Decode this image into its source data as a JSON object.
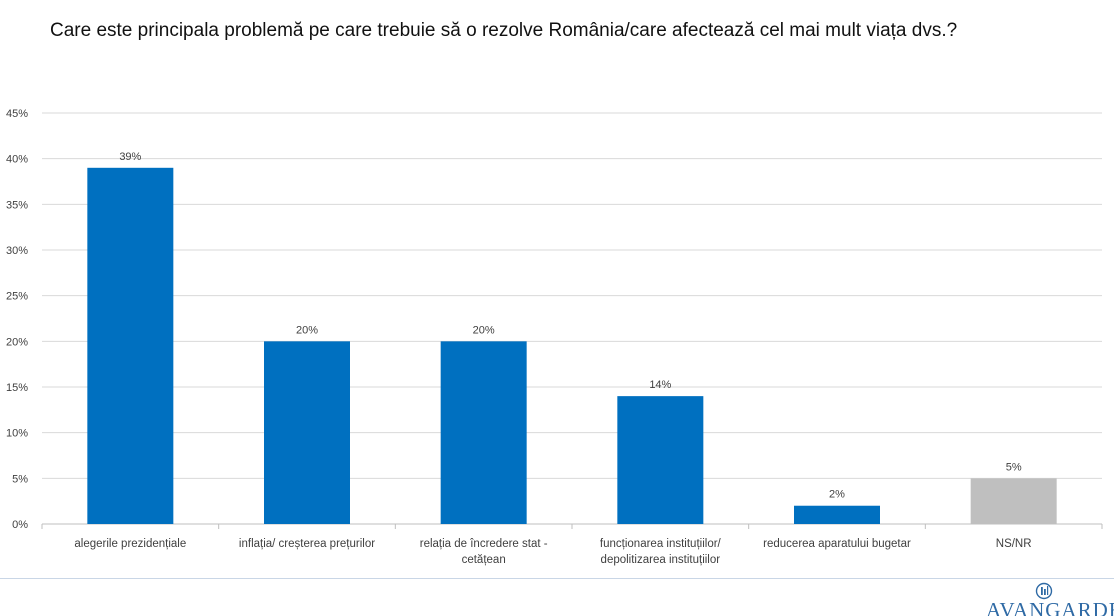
{
  "title": "Care este principala problemă pe care trebuie să o rezolve România/care afectează cel mai mult viața dvs.?",
  "chart_data": {
    "type": "bar",
    "title": "Care este principala problemă pe care trebuie să o rezolve România/care afectează cel mai mult viața dvs.?",
    "xlabel": "",
    "ylabel": "",
    "ylim": [
      0,
      45
    ],
    "yticks": [
      0,
      5,
      10,
      15,
      20,
      25,
      30,
      35,
      40,
      45
    ],
    "ytick_labels": [
      "0%",
      "5%",
      "10%",
      "15%",
      "20%",
      "25%",
      "30%",
      "35%",
      "40%",
      "45%"
    ],
    "grid": true,
    "categories": [
      [
        "alegerile  prezidențiale"
      ],
      [
        "inflația/ creșterea prețurilor"
      ],
      [
        "relația de încredere stat -",
        "cetățean"
      ],
      [
        "funcționarea instituțiilor/",
        "depolitizarea instituțiilor"
      ],
      [
        "reducerea aparatului bugetar"
      ],
      [
        "NS/NR"
      ]
    ],
    "values": [
      39,
      20,
      20,
      14,
      2,
      5
    ],
    "data_labels": [
      "39%",
      "20%",
      "20%",
      "14%",
      "2%",
      "5%"
    ],
    "colors": [
      "#0070c0",
      "#0070c0",
      "#0070c0",
      "#0070c0",
      "#0070c0",
      "#bfbfbf"
    ]
  },
  "logo": {
    "text": "AVANGARDE",
    "color": "#2f6aa5"
  }
}
